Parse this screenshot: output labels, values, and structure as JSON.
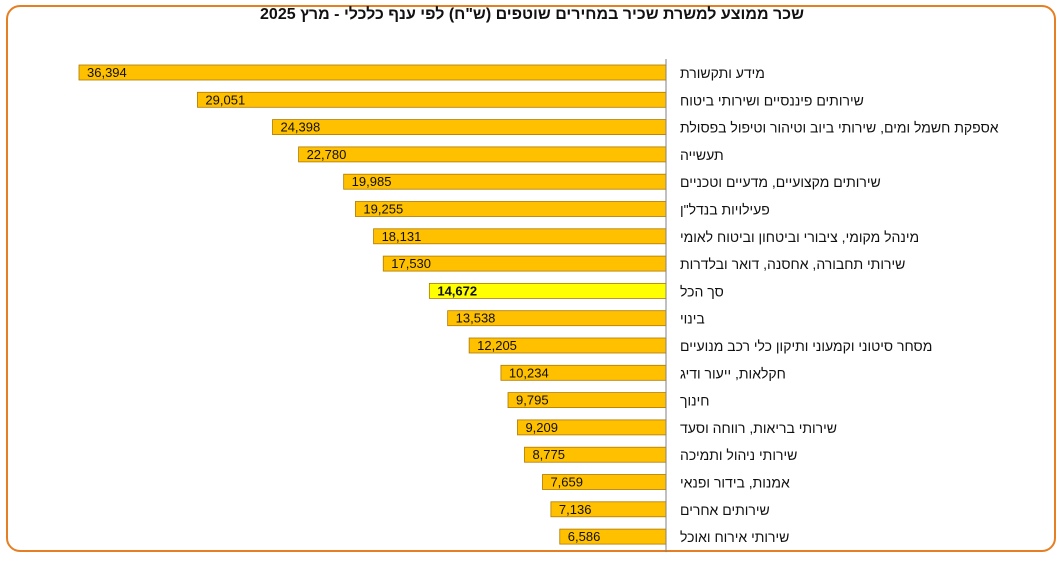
{
  "chart_data": {
    "type": "bar",
    "orientation": "horizontal",
    "title": "שכר ממוצע למשרת שכיר במחירים שוטפים (ש\"ח) לפי ענף כלכלי - מרץ 2025",
    "xlabel": "",
    "ylabel": "",
    "xlim": [
      0,
      36394
    ],
    "grid": false,
    "legend": "none",
    "categories": [
      "מידע ותקשורת",
      "שירותים פיננסיים ושירותי ביטוח",
      "אספקת חשמל ומים, שירותי ביוב וטיהור וטיפול בפסולת",
      "תעשייה",
      "שירותים מקצועיים, מדעיים וטכניים",
      "פעילויות בנדל\"ן",
      "מינהל מקומי, ציבורי וביטחון וביטוח לאומי",
      "שירותי תחבורה, אחסנה, דואר ובלדרות",
      "סך הכל",
      "בינוי",
      "מסחר סיטוני וקמעוני ותיקון כלי רכב מנועיים",
      "חקלאות, ייעור ודיג",
      "חינוך",
      "שירותי בריאות, רווחה וסעד",
      "שירותי ניהול ותמיכה",
      "אמנות, בידור ופנאי",
      "שירותים אחרים",
      "שירותי אירוח ואוכל"
    ],
    "values": [
      36394,
      29051,
      24398,
      22780,
      19985,
      19255,
      18131,
      17530,
      14672,
      13538,
      12205,
      10234,
      9795,
      9209,
      8775,
      7659,
      7136,
      6586
    ],
    "value_labels": [
      "36,394",
      "29,051",
      "24,398",
      "22,780",
      "19,985",
      "19,255",
      "18,131",
      "17,530",
      "14,672",
      "13,538",
      "12,205",
      "10,234",
      "9,795",
      "9,209",
      "8,775",
      "7,659",
      "7,136",
      "6,586"
    ],
    "highlight_category": "סך הכל",
    "colors": {
      "bar": "#ffc000",
      "bar_border": "#b07800",
      "highlight": "#ffff00",
      "axis": "#808080",
      "frame": "#e67e22"
    }
  }
}
